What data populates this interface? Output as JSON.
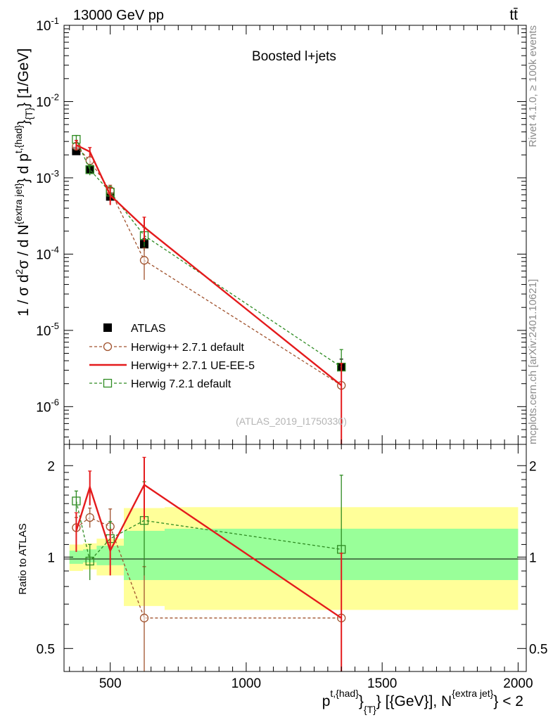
{
  "header": {
    "energy_label": "13000 GeV pp",
    "process_label": "tt̄"
  },
  "side_labels": {
    "rivet": "Rivet 4.1.0, ≥ 100k events",
    "mcplots": "mcplots.cern.ch [arXiv:2401.10621]"
  },
  "colors": {
    "atlas": "#000000",
    "herwigpp_default": "#a0522d",
    "herwigpp_ueee5": "#e41a1c",
    "herwig7_default": "#2e8b22",
    "band_outer": "#ffff99",
    "band_inner": "#99ff99"
  },
  "chart_data": [
    {
      "type": "scatter",
      "panel": "main",
      "title": "Boosted l+jets",
      "watermark": "(ATLAS_2019_I1750330)",
      "yscale": "log",
      "ylabel_parts": {
        "pre": "1 / σ d",
        "sup2": "2",
        "mid1": "σ / d N",
        "sup_extra": "{extra jet}",
        "mid2": "} d p",
        "sup_had": "t,{had}",
        "mid3": "}",
        "sub_t": "{T}",
        "post": "} [1/GeV]"
      },
      "xlim": [
        330,
        2030
      ],
      "ylim": [
        3.2e-07,
        0.1
      ],
      "y_ticks": [
        {
          "base": "10",
          "exp": "-1",
          "value": 0.1
        },
        {
          "base": "10",
          "exp": "-2",
          "value": 0.01
        },
        {
          "base": "10",
          "exp": "-3",
          "value": 0.001
        },
        {
          "base": "10",
          "exp": "-4",
          "value": 0.0001
        },
        {
          "base": "10",
          "exp": "-5",
          "value": 1e-05
        },
        {
          "base": "10",
          "exp": "-6",
          "value": 1e-06
        }
      ],
      "legend_position": "center-left",
      "series": [
        {
          "name": "ATLAS",
          "style": "marker-square",
          "x": [
            375,
            425,
            500,
            625,
            1350
          ],
          "y": [
            0.00225,
            0.00128,
            0.00057,
            0.000135,
            3.3e-06
          ],
          "err_low": [
            0.0002,
            0.00013,
            7e-05,
            2.5e-05,
            9e-07
          ],
          "err_high": [
            0.0002,
            0.00013,
            7e-05,
            2.5e-05,
            9e-07
          ]
        },
        {
          "name": "Herwig++ 2.7.1 default",
          "style": "dashed-circle",
          "x": [
            375,
            425,
            500,
            625,
            1350
          ],
          "y": [
            0.0026,
            0.00168,
            0.00068,
            8.3e-05,
            1.9e-06
          ],
          "err_low": [
            0.0003,
            0.0002,
            0.00012,
            3.7e-05,
            1.8e-06
          ],
          "err_high": [
            0.0003,
            0.0002,
            0.00012,
            3.7e-05,
            1.8e-06
          ]
        },
        {
          "name": "Herwig++ 2.7.1 UE-EE-5",
          "style": "solid-line",
          "x": [
            375,
            425,
            500,
            625,
            1350
          ],
          "y": [
            0.0027,
            0.0022,
            0.00059,
            0.000225,
            1.9e-06
          ],
          "err_low": [
            0.0004,
            0.0003,
            0.00015,
            8e-05,
            1.8e-06
          ],
          "err_high": [
            0.0004,
            0.0003,
            0.00015,
            8e-05,
            1.8e-06
          ]
        },
        {
          "name": "Herwig 7.2.1 default",
          "style": "dashed-square",
          "x": [
            375,
            425,
            500,
            625,
            1350
          ],
          "y": [
            0.0032,
            0.00128,
            0.00065,
            0.000175,
            3.3e-06
          ],
          "err_low": [
            0.0004,
            0.0002,
            0.00012,
            5e-05,
            2.3e-06
          ],
          "err_high": [
            0.0004,
            0.0002,
            0.00012,
            5e-05,
            2.3e-06
          ]
        }
      ]
    },
    {
      "type": "scatter",
      "panel": "ratio",
      "ylabel": "Ratio to ATLAS",
      "yscale": "log",
      "xlim": [
        330,
        2030
      ],
      "ylim": [
        0.42,
        2.35
      ],
      "y_ticks": [
        {
          "label": "2",
          "value": 2
        },
        {
          "label": "1",
          "value": 1
        },
        {
          "label": "0.5",
          "value": 0.5
        }
      ],
      "x_ticks": [
        {
          "label": "500",
          "value": 500
        },
        {
          "label": "1000",
          "value": 1000
        },
        {
          "label": "1500",
          "value": 1500
        },
        {
          "label": "2000",
          "value": 2000
        }
      ],
      "xlabel_parts": {
        "pre": "p",
        "sup_had": "t,{had}",
        "mid": "}",
        "sub_t": "{T}",
        "post1": "} [{GeV}], N",
        "sup_extra": "{extra jet}",
        "post2": "} < 2"
      },
      "bands": {
        "edges": [
          350,
          400,
          450,
          550,
          700,
          2000
        ],
        "outer_low": [
          0.9,
          0.91,
          0.87,
          0.69,
          0.67
        ],
        "outer_high": [
          1.1,
          1.11,
          1.15,
          1.45,
          1.46
        ],
        "inner_low": [
          0.95,
          0.96,
          0.94,
          0.84,
          0.84
        ],
        "inner_high": [
          1.05,
          1.06,
          1.09,
          1.22,
          1.24
        ]
      },
      "series": [
        {
          "name": "Herwig++ 2.7.1 default",
          "x": [
            375,
            425,
            500,
            625,
            1350
          ],
          "y": [
            1.25,
            1.35,
            1.26,
            0.63,
            0.63
          ],
          "err_low": [
            0.1,
            0.1,
            0.18,
            0.3,
            0.4
          ],
          "err_high": [
            0.1,
            0.1,
            0.18,
            0.3,
            0.4
          ]
        },
        {
          "name": "Herwig++ 2.7.1 UE-EE-5",
          "x": [
            375,
            425,
            500,
            625,
            1350
          ],
          "y": [
            1.22,
            1.7,
            1.05,
            1.73,
            0.63
          ],
          "err_low": [
            0.18,
            0.22,
            0.18,
            0.4,
            0.4
          ],
          "err_high": [
            0.18,
            0.22,
            0.18,
            0.4,
            0.4
          ]
        },
        {
          "name": "Herwig 7.2.1 default",
          "x": [
            375,
            425,
            500,
            625,
            1350
          ],
          "y": [
            1.53,
            0.97,
            1.15,
            1.32,
            1.06
          ],
          "err_low": [
            0.12,
            0.13,
            0.16,
            0.45,
            0.8
          ],
          "err_high": [
            0.12,
            0.13,
            0.16,
            0.45,
            0.8
          ]
        }
      ]
    }
  ]
}
